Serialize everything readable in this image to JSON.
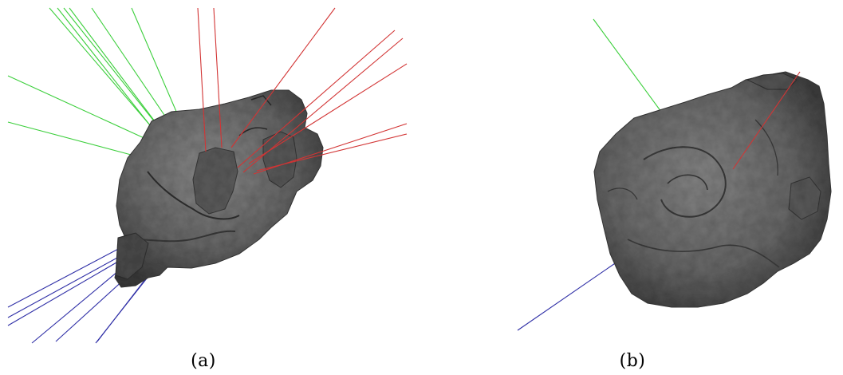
{
  "panels": [
    {
      "caption": "(a)"
    },
    {
      "caption": "(b)"
    }
  ],
  "colors": {
    "background": "#ffffff",
    "mesh_fill": "#6f6f6f",
    "mesh_dark": "#3e3e3e",
    "axis_green": "#3ccf3c",
    "axis_red": "#d23434",
    "axis_blue": "#2e2ea6"
  }
}
